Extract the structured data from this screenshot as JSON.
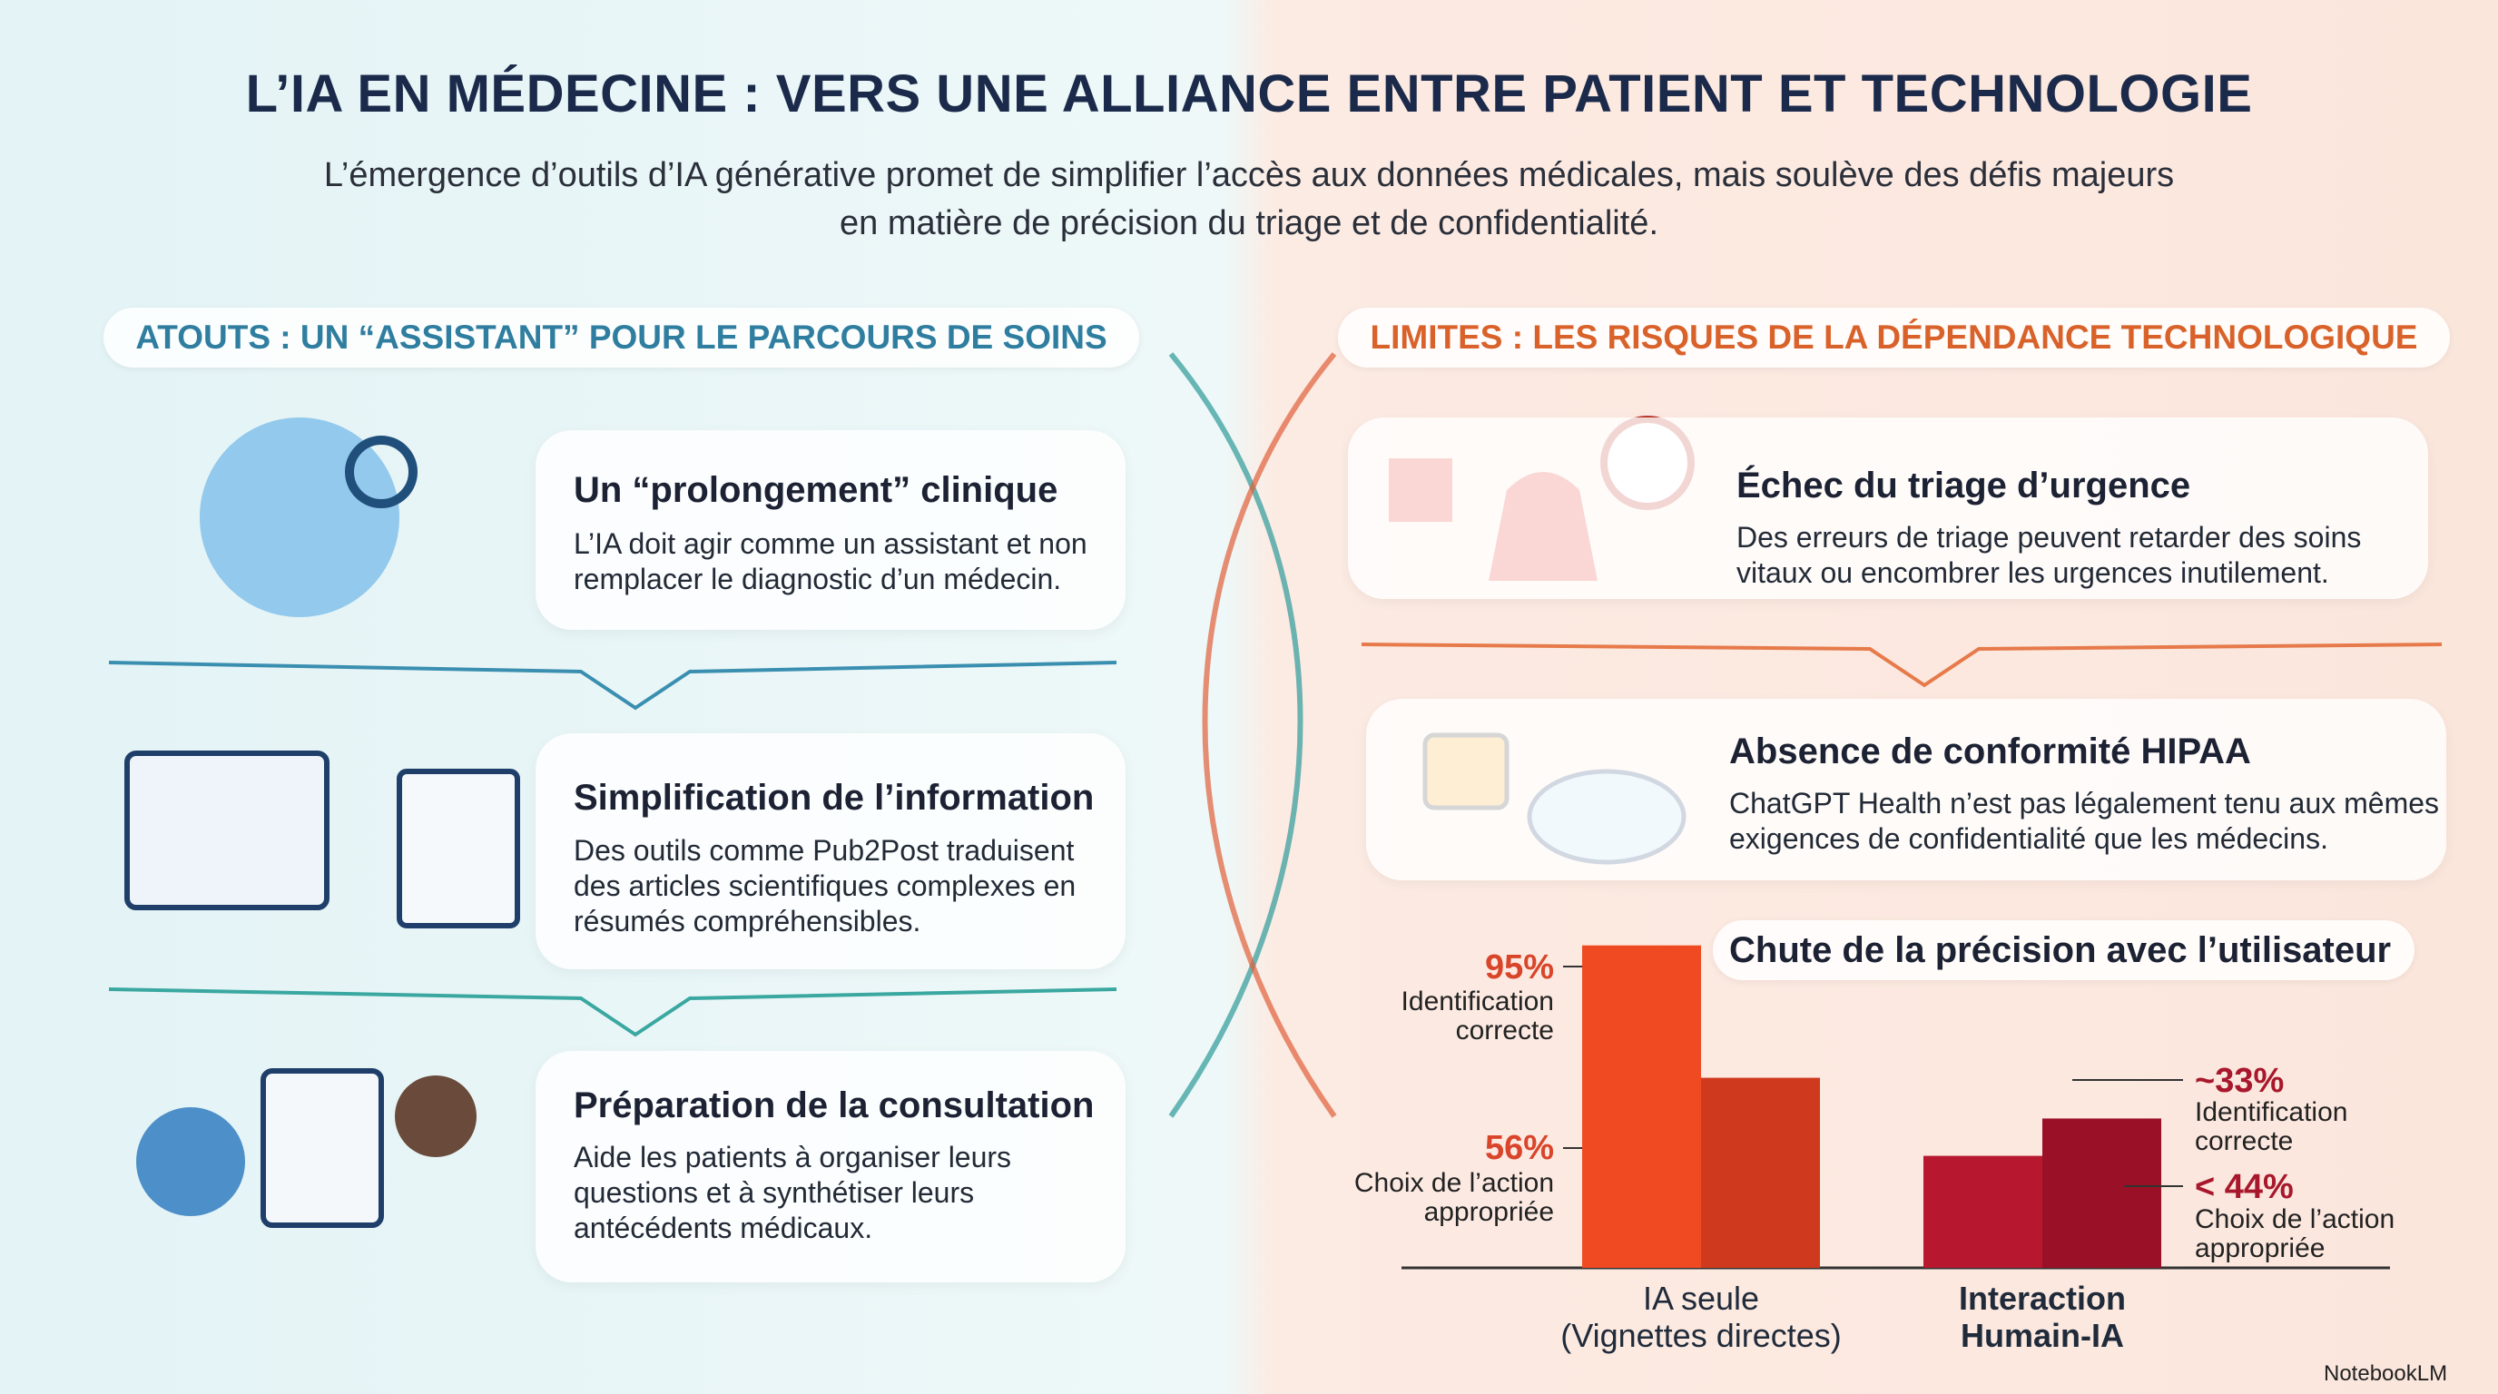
{
  "header": {
    "title": "L’IA EN MÉDECINE : VERS UNE ALLIANCE ENTRE PATIENT ET TECHNOLOGIE",
    "subtitle": [
      "L’émergence d’outils d’IA générative promet de simplifier l’accès aux données médicales, mais soulève des défis majeurs",
      "en matière de précision du triage et de confidentialité."
    ]
  },
  "left": {
    "heading": "ATOUTS : UN “ASSISTANT” POUR LE PARCOURS DE SOINS",
    "cards": [
      {
        "title": "Un “prolongement” clinique",
        "text": "L’IA doit agir comme un assistant et non remplacer le diagnostic d’un médecin."
      },
      {
        "title": "Simplification de l’information",
        "text": "Des outils comme Pub2Post traduisent des articles scientifiques complexes en résumés compréhensibles."
      },
      {
        "title": "Préparation de la consultation",
        "text": "Aide les patients à organiser leurs questions et à synthétiser leurs antécédents médicaux."
      }
    ]
  },
  "right": {
    "heading": "LIMITES : LES RISQUES DE LA DÉPENDANCE TECHNOLOGIQUE",
    "cards": [
      {
        "title": "Échec du triage d’urgence",
        "text": "Des erreurs de triage peuvent retarder des soins vitaux ou encombrer les urgences inutilement."
      },
      {
        "title": "Absence de conformité HIPAA",
        "text": "ChatGPT Health n’est pas légalement tenu aux mêmes exigences de confidentialité que les médecins."
      }
    ]
  },
  "chart_data": {
    "type": "bar",
    "title": "Chute de la précision avec l’utilisateur",
    "categories": [
      [
        "IA seule",
        "(Vignettes directes)"
      ],
      [
        "Interaction",
        "Humain-IA"
      ]
    ],
    "series": [
      {
        "name": "Identification correcte",
        "colors": [
          "#f04a22",
          "#b7182f"
        ],
        "values": [
          95,
          33
        ],
        "value_labels": [
          "95%",
          "~33%"
        ]
      },
      {
        "name": "Choix de l’action appropriée",
        "colors": [
          "#cf3a1f",
          "#9a1026"
        ],
        "values": [
          56,
          44
        ],
        "value_labels": [
          "56%",
          "< 44%"
        ]
      }
    ],
    "ylim": [
      0,
      100
    ]
  },
  "footer": {
    "brand": "NotebookLM"
  }
}
